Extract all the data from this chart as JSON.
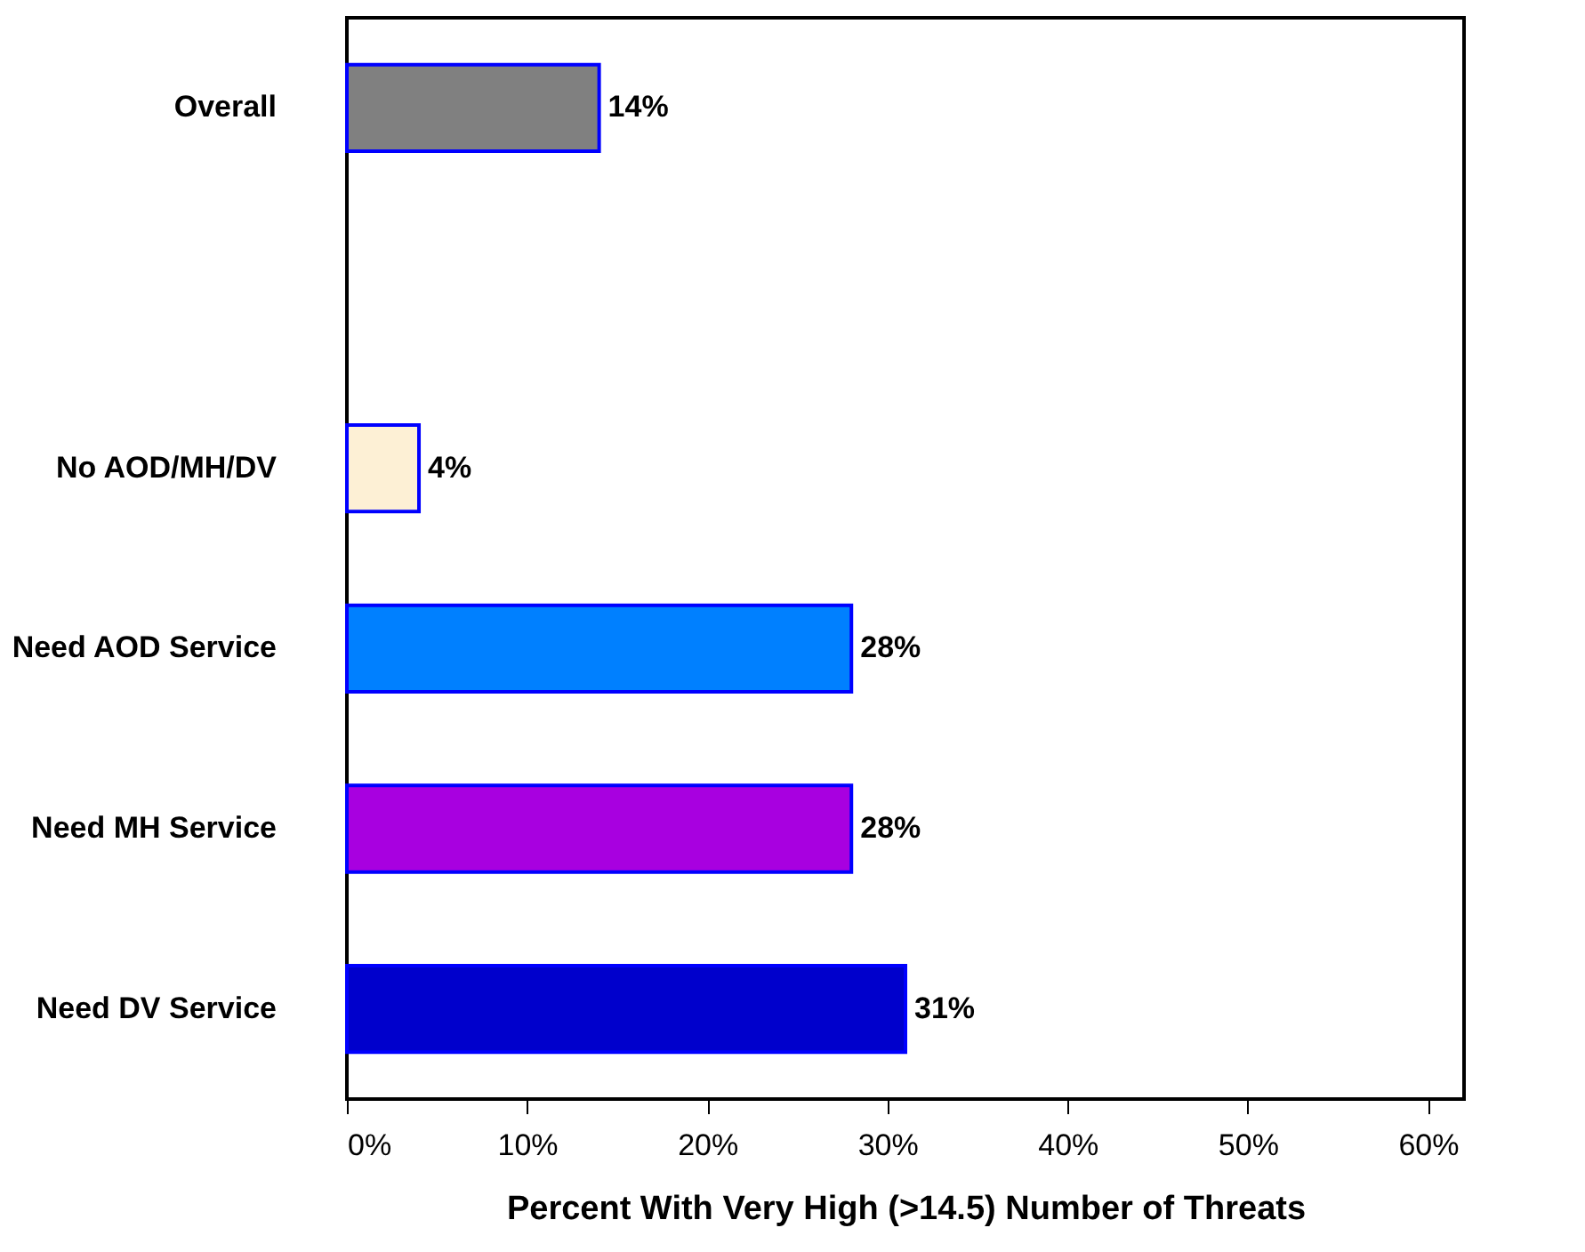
{
  "chart_data": {
    "type": "bar",
    "orientation": "horizontal",
    "xlabel": "Percent With Very High (>14.5) Number of Threats",
    "categories": [
      "Overall",
      null,
      "No AOD/MH/DV",
      "Need AOD Service",
      "Need MH Service",
      "Need DV Service"
    ],
    "values": [
      14,
      null,
      4,
      28,
      28,
      31
    ],
    "colors": [
      "#808080",
      "#ffffff",
      "#fdf0d5",
      "#0080ff",
      "#a800e0",
      "#0000cc"
    ],
    "value_labels": [
      "14%",
      null,
      "4%",
      "28%",
      "28%",
      "31%"
    ],
    "xlim": [
      0,
      62
    ],
    "xticks": [
      {
        "value": 0,
        "label": "0%"
      },
      {
        "value": 10,
        "label": "10%"
      },
      {
        "value": 20,
        "label": "20%"
      },
      {
        "value": 30,
        "label": "30%"
      },
      {
        "value": 40,
        "label": "40%"
      },
      {
        "value": 50,
        "label": "50%"
      },
      {
        "value": 60,
        "label": "60%"
      }
    ],
    "grid": false
  }
}
